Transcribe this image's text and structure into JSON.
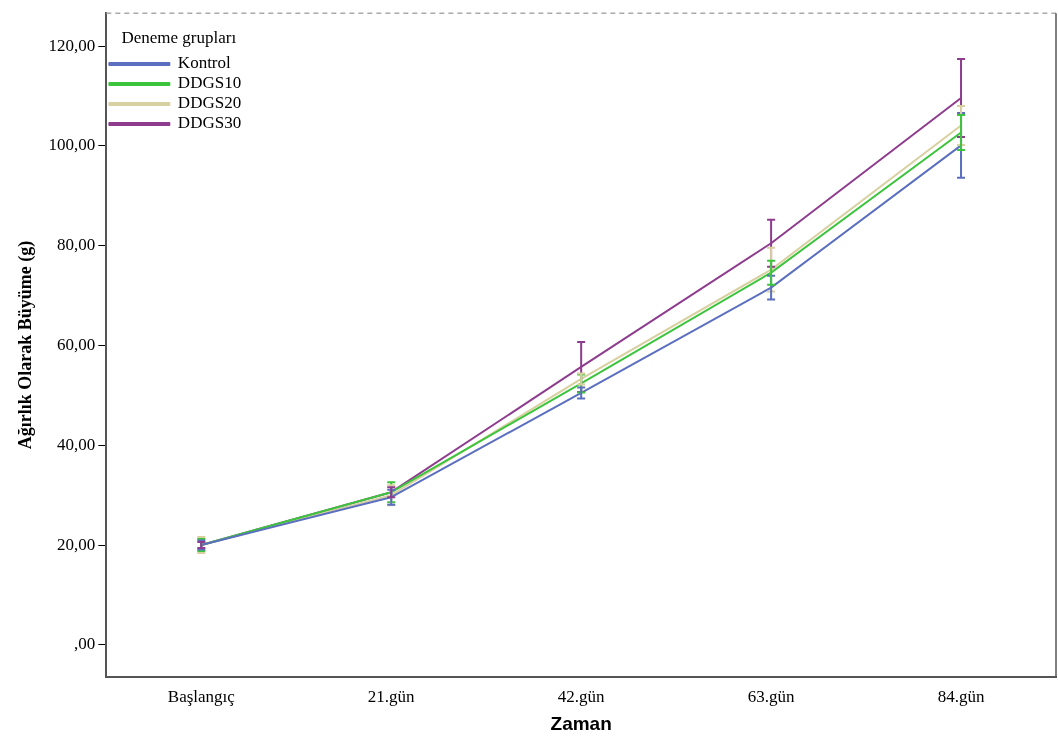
{
  "chart_data": {
    "type": "line",
    "xlabel": "Zaman",
    "ylabel": "Ağırlık Olarak Büyüme (g)",
    "legend_title": "Deneme grupları",
    "legend": "top left",
    "grid": false,
    "marker": "none",
    "line_style": "solid",
    "categories": [
      "Başlangıç",
      "21.gün",
      "42.gün",
      "63.gün",
      "84.gün"
    ],
    "ylim": [
      -6.4,
      126.6
    ],
    "yticks": [
      {
        "value": 0,
        "label": ",00"
      },
      {
        "value": 20,
        "label": "20,00"
      },
      {
        "value": 40,
        "label": "40,00"
      },
      {
        "value": 60,
        "label": "60,00"
      },
      {
        "value": 80,
        "label": "80,00"
      },
      {
        "value": 100,
        "label": "100,00"
      },
      {
        "value": 120,
        "label": "120,00"
      }
    ],
    "series": [
      {
        "name": "Kontrol",
        "color": "#5b6fc0",
        "values": [
          20,
          29.6,
          50.5,
          71.6,
          100.1
        ],
        "errors": [
          0.9,
          1.5,
          1.1,
          2.4,
          6.5
        ]
      },
      {
        "name": "DDGS10",
        "color": "#3cc43c",
        "values": [
          20,
          30.6,
          52.4,
          74.6,
          102.7
        ],
        "errors": [
          1.2,
          2,
          1.8,
          2.4,
          3.5
        ]
      },
      {
        "name": "DDGS20",
        "color": "#d8d0a0",
        "values": [
          20,
          30,
          53.3,
          75.2,
          104.1
        ],
        "errors": [
          1.6,
          2,
          1.1,
          4.4,
          3.9
        ]
      },
      {
        "name": "DDGS30",
        "color": "#8e3c8e",
        "values": [
          20,
          30.6,
          55.7,
          80.5,
          109.6
        ],
        "errors": [
          0.6,
          1,
          5,
          4.7,
          7.8
        ]
      }
    ]
  }
}
